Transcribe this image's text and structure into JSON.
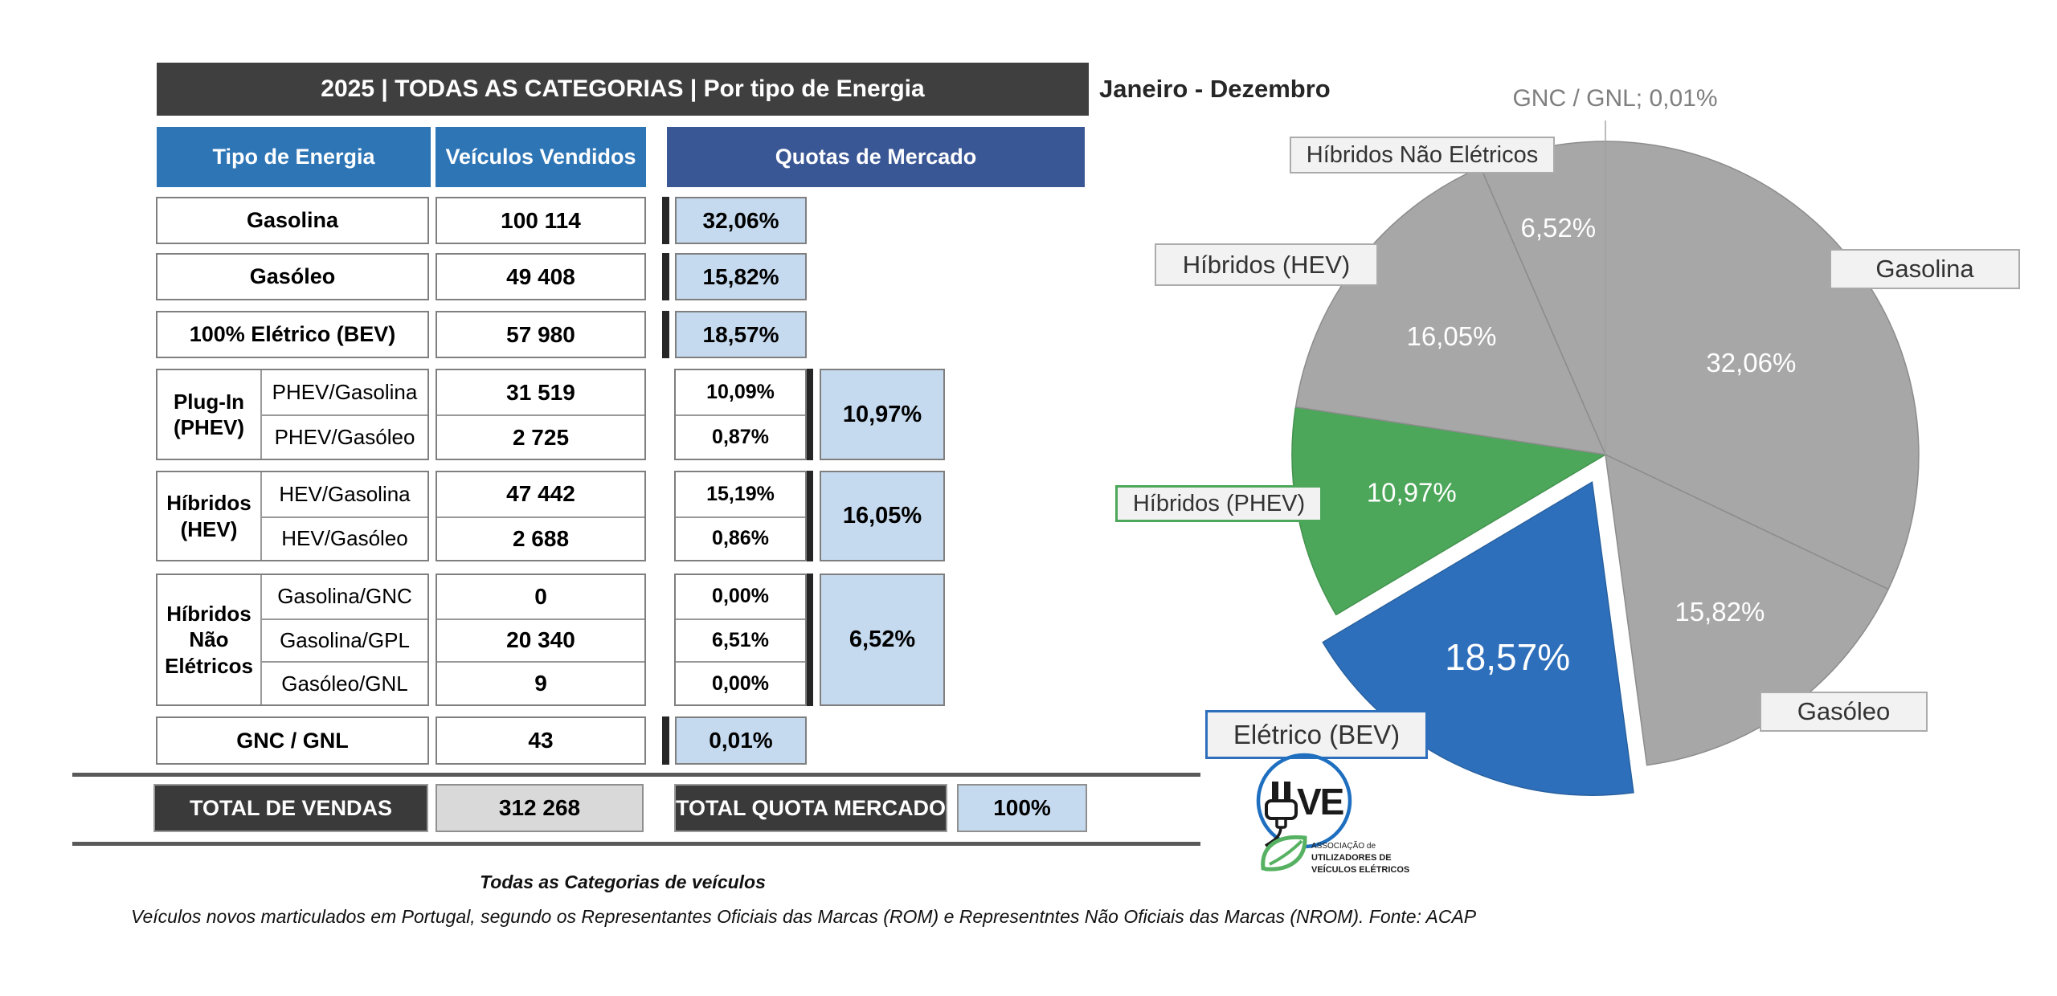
{
  "title_bar": "2025 | TODAS AS CATEGORIAS | Por tipo de Energia",
  "period_label": "Janeiro - Dezembro",
  "table": {
    "headers": {
      "energy": "Tipo de Energia",
      "sold": "Veículos Vendidos",
      "share": "Quotas de Mercado"
    },
    "rows": [
      {
        "type": "single",
        "label": "Gasolina",
        "value": "100 114",
        "share": "32,06%"
      },
      {
        "type": "single",
        "label": "Gasóleo",
        "value": "49 408",
        "share": "15,82%"
      },
      {
        "type": "single",
        "label": "100% Elétrico (BEV)",
        "value": "57 980",
        "share": "18,57%"
      },
      {
        "type": "group",
        "label_lines": [
          "Plug-In",
          "(PHEV)"
        ],
        "subs": [
          {
            "label": "PHEV/Gasolina",
            "value": "31 519",
            "share": "10,09%"
          },
          {
            "label": "PHEV/Gasóleo",
            "value": "2 725",
            "share": "0,87%"
          }
        ],
        "total": "10,97%"
      },
      {
        "type": "group",
        "label_lines": [
          "Híbridos",
          "(HEV)"
        ],
        "subs": [
          {
            "label": "HEV/Gasolina",
            "value": "47 442",
            "share": "15,19%"
          },
          {
            "label": "HEV/Gasóleo",
            "value": "2 688",
            "share": "0,86%"
          }
        ],
        "total": "16,05%"
      },
      {
        "type": "group",
        "label_lines": [
          "Híbridos",
          "Não",
          "Elétricos"
        ],
        "subs": [
          {
            "label": "Gasolina/GNC",
            "value": "0",
            "share": "0,00%"
          },
          {
            "label": "Gasolina/GPL",
            "value": "20 340",
            "share": "6,51%"
          },
          {
            "label": "Gasóleo/GNL",
            "value": "9",
            "share": "0,00%"
          }
        ],
        "total": "6,52%"
      },
      {
        "type": "single",
        "label": "GNC / GNL",
        "value": "43",
        "share": "0,01%"
      }
    ],
    "totals": {
      "sales_label": "TOTAL DE VENDAS",
      "sales_value": "312 268",
      "share_label": "TOTAL QUOTA MERCADO",
      "share_value": "100%"
    }
  },
  "footnotes": {
    "line1": "Todas as Categorias de veículos",
    "line2": "Veículos novos marticulados em Portugal, segundo os Representantes Oficiais das Marcas (ROM) e Representntes Não Oficiais das Marcas (NROM). Fonte: ACAP"
  },
  "logo": {
    "wordmark": "VE",
    "line1": "ASSOCIAÇÃO de",
    "line2": "UTILIZADORES DE",
    "line3": "VEÍCULOS ELÉTRICOS"
  },
  "chart_data": {
    "type": "pie",
    "title": "Janeiro - Dezembro",
    "direction": "clockwise",
    "start_angle_deg": 0,
    "slices": [
      {
        "label": "GNC / GNL",
        "value": 0.01,
        "display": "0,01%",
        "color": "#a7a7a7",
        "exploded": false
      },
      {
        "label": "Gasolina",
        "value": 32.06,
        "display": "32,06%",
        "color": "#a7a7a7",
        "exploded": false
      },
      {
        "label": "Gasóleo",
        "value": 15.82,
        "display": "15,82%",
        "color": "#a7a7a7",
        "exploded": false
      },
      {
        "label": "Elétrico (BEV)",
        "value": 18.57,
        "display": "18,57%",
        "color": "#2e6fbc",
        "exploded": true
      },
      {
        "label": "Híbridos (PHEV)",
        "value": 10.97,
        "display": "10,97%",
        "color": "#4ca75a",
        "exploded": false
      },
      {
        "label": "Híbridos (HEV)",
        "value": 16.05,
        "display": "16,05%",
        "color": "#a7a7a7",
        "exploded": false
      },
      {
        "label": "Híbridos Não Elétricos",
        "value": 6.52,
        "display": "6,52%",
        "color": "#a7a7a7",
        "exploded": false
      }
    ],
    "float_label": "GNC / GNL; 0,01%",
    "callout_labels": [
      "Híbridos Não Elétricos",
      "Gasolina",
      "Híbridos (HEV)",
      "Híbridos (PHEV)",
      "Elétrico (BEV)",
      "Gasóleo"
    ],
    "label_color": "#ffffff",
    "legend_position": "callouts-around-pie"
  }
}
